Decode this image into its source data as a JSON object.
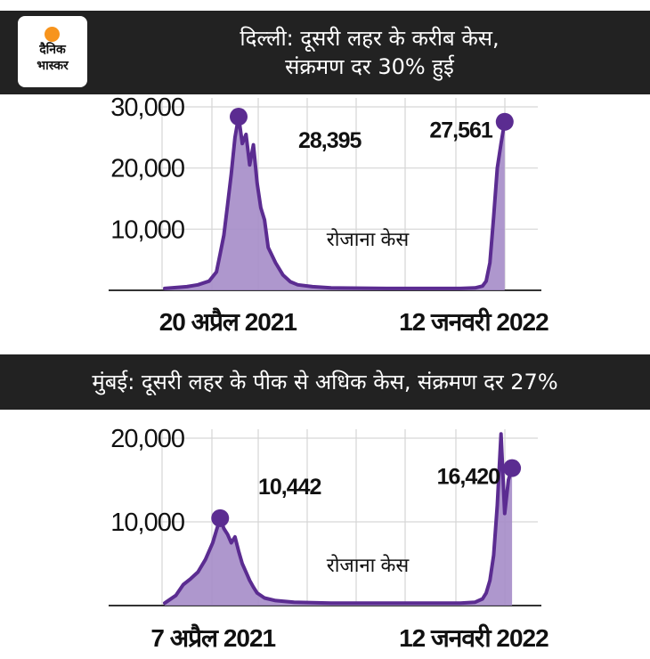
{
  "header": {
    "logo": {
      "line1": "दैनिक",
      "line2": "भास्कर"
    },
    "title_line1": "दिल्ली: दूसरी लहर के करीब केस,",
    "title_line2": "संक्रमण दर 30% हुई"
  },
  "section2": {
    "title": "मुंबई: दूसरी लहर के पीक से अधिक केस, संक्रमण दर 27%"
  },
  "colors": {
    "banner": "#222222",
    "line": "#5b2c91",
    "fill": "#a58cc8",
    "grid": "#d6d6d6",
    "logo_sun": "#f7941d"
  },
  "chart_data": [
    {
      "type": "area",
      "ylim": [
        0,
        30000
      ],
      "yticks": [
        "10,000",
        "20,000",
        "30,000"
      ],
      "ytick_values": [
        10000,
        20000,
        30000
      ],
      "xlim": [
        0,
        100
      ],
      "xticks": [
        "20 अप्रैल 2021",
        "12 जनवरी 2022"
      ],
      "xtick_positions": [
        19,
        86
      ],
      "series_label": "रोजाना केस",
      "grid": true,
      "series": [
        {
          "x": [
            0,
            6,
            9,
            12,
            14,
            15,
            16,
            17,
            18,
            19,
            20,
            21,
            22,
            23,
            24,
            25,
            26,
            27,
            28,
            30,
            32,
            34,
            36,
            40,
            45,
            60,
            80,
            84,
            86,
            87,
            88,
            89,
            90,
            91,
            92
          ],
          "y": [
            300,
            600,
            900,
            1500,
            3000,
            6000,
            9000,
            14000,
            19000,
            25000,
            28395,
            24000,
            25500,
            20500,
            23800,
            17500,
            13500,
            11500,
            7000,
            4500,
            2500,
            1400,
            900,
            600,
            400,
            300,
            300,
            400,
            700,
            1500,
            4500,
            12000,
            20000,
            24000,
            27561
          ]
        }
      ],
      "annotations": [
        {
          "x": 20,
          "y": 28395,
          "label": "28,395"
        },
        {
          "x": 92,
          "y": 27561,
          "label": "27,561"
        }
      ]
    },
    {
      "type": "area",
      "ylim": [
        0,
        20000
      ],
      "yticks": [
        "10,000",
        "20,000"
      ],
      "ytick_values": [
        10000,
        20000
      ],
      "xlim": [
        0,
        100
      ],
      "xticks": [
        "7 अप्रैल 2021",
        "12 जनवरी 2022"
      ],
      "xtick_positions": [
        15,
        86
      ],
      "series_label": "रोजाना केस",
      "grid": true,
      "series": [
        {
          "x": [
            0,
            3,
            5,
            7,
            9,
            11,
            12,
            13,
            14,
            15,
            16,
            17,
            18,
            19,
            20,
            21,
            22,
            23,
            24,
            25,
            27,
            30,
            35,
            45,
            60,
            80,
            84,
            86,
            87,
            88,
            89,
            90,
            91,
            92,
            93,
            94
          ],
          "y": [
            300,
            1200,
            2500,
            3200,
            4000,
            5500,
            6500,
            7500,
            9000,
            10442,
            9200,
            8500,
            7500,
            8200,
            6500,
            5000,
            4000,
            3000,
            2200,
            1500,
            900,
            600,
            400,
            300,
            300,
            300,
            400,
            800,
            1500,
            3000,
            6000,
            12000,
            20500,
            11000,
            15000,
            16420
          ]
        }
      ],
      "annotations": [
        {
          "x": 15,
          "y": 10442,
          "label": "10,442"
        },
        {
          "x": 94,
          "y": 16420,
          "label": "16,420"
        }
      ]
    }
  ]
}
